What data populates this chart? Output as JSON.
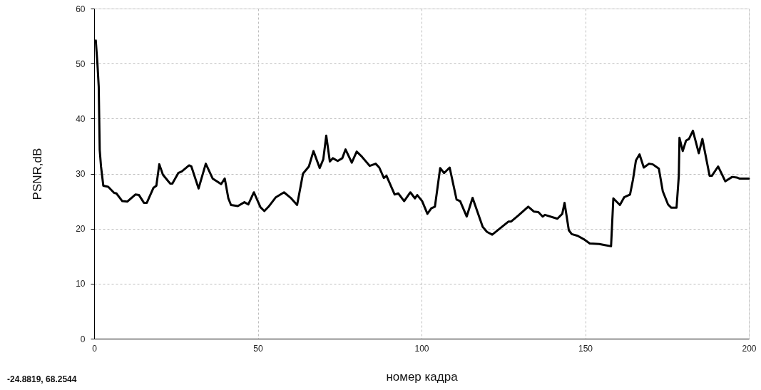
{
  "chart_data": {
    "type": "line",
    "xlabel": "номер кадра",
    "ylabel": "PSNR,dB",
    "annotations": [
      "-24.8819, 68.2544"
    ],
    "xlim": [
      0,
      200
    ],
    "ylim": [
      0,
      60
    ],
    "xticks": [
      0,
      50,
      100,
      150,
      200
    ],
    "yticks": [
      0,
      10,
      20,
      30,
      40,
      50,
      60
    ],
    "grid": true,
    "marker": "none",
    "line_style": "solid",
    "series": [
      {
        "color": "#000000",
        "x": [
          0.5,
          1.0,
          1.4,
          1.7,
          2.1,
          2.8,
          4.3,
          6.1,
          6.8,
          8.6,
          10.1,
          12.6,
          13.7,
          15.2,
          16.1,
          18.1,
          19.0,
          19.9,
          21.0,
          23.2,
          23.9,
          25.7,
          26.8,
          29.0,
          29.7,
          31.9,
          34.1,
          36.2,
          38.8,
          39.9,
          41.0,
          41.8,
          43.9,
          45.9,
          47.1,
          48.8,
          50.8,
          52.0,
          53.3,
          55.5,
          58.0,
          60.2,
          62.0,
          63.8,
          65.6,
          67.0,
          68.9,
          70.0,
          70.9,
          72.0,
          72.9,
          74.4,
          75.8,
          76.8,
          78.7,
          80.2,
          81.6,
          84.2,
          86.0,
          87.1,
          88.5,
          89.3,
          91.8,
          92.9,
          94.7,
          96.6,
          98.0,
          98.7,
          100.2,
          101.8,
          103.0,
          104.1,
          105.7,
          106.9,
          108.6,
          110.7,
          111.8,
          113.8,
          115.6,
          118.7,
          120.0,
          121.6,
          126.6,
          127.4,
          129.6,
          132.6,
          134.3,
          135.7,
          137.0,
          137.7,
          141.5,
          143.0,
          143.7,
          145.0,
          145.9,
          147.7,
          149.5,
          151.4,
          154.3,
          156.0,
          157.9,
          158.6,
          160.6,
          161.9,
          163.7,
          164.6,
          165.5,
          166.6,
          167.9,
          169.5,
          170.6,
          172.5,
          173.7,
          175.3,
          176.3,
          177.9,
          178.6,
          178.8,
          179.8,
          180.8,
          181.7,
          182.9,
          184.7,
          185.8,
          188.0,
          188.7,
          190.6,
          192.8,
          194.9,
          196.3,
          197.1,
          200.0
        ],
        "values": [
          54.2,
          50.0,
          45.8,
          34.3,
          31.3,
          27.8,
          27.6,
          26.5,
          26.4,
          25.0,
          24.9,
          26.2,
          26.1,
          24.7,
          24.7,
          27.4,
          27.8,
          31.7,
          29.8,
          28.2,
          28.2,
          30.1,
          30.4,
          31.5,
          31.3,
          27.3,
          31.8,
          29.1,
          28.1,
          29.1,
          25.5,
          24.3,
          24.1,
          24.8,
          24.4,
          26.6,
          23.9,
          23.2,
          24.0,
          25.7,
          26.6,
          25.5,
          24.3,
          30.0,
          31.3,
          34.1,
          31.0,
          32.6,
          36.9,
          32.2,
          32.8,
          32.3,
          32.8,
          34.4,
          32.0,
          34.0,
          33.2,
          31.4,
          31.8,
          31.1,
          29.2,
          29.6,
          26.2,
          26.4,
          25.0,
          26.6,
          25.5,
          26.1,
          25.0,
          22.7,
          23.7,
          24.0,
          31.0,
          30.1,
          31.1,
          25.3,
          25.0,
          22.2,
          25.6,
          20.3,
          19.4,
          18.9,
          21.3,
          21.3,
          22.4,
          24.0,
          23.1,
          23.0,
          22.2,
          22.5,
          21.8,
          22.7,
          24.7,
          19.7,
          19.0,
          18.7,
          18.1,
          17.3,
          17.2,
          17.0,
          16.8,
          25.5,
          24.3,
          25.7,
          26.2,
          28.9,
          32.4,
          33.5,
          31.1,
          31.8,
          31.7,
          30.9,
          26.8,
          24.4,
          23.8,
          23.8,
          29.6,
          36.5,
          34.1,
          36.0,
          36.3,
          37.8,
          33.7,
          36.3,
          29.6,
          29.6,
          31.3,
          28.6,
          29.4,
          29.3,
          29.1,
          29.1
        ]
      }
    ]
  }
}
